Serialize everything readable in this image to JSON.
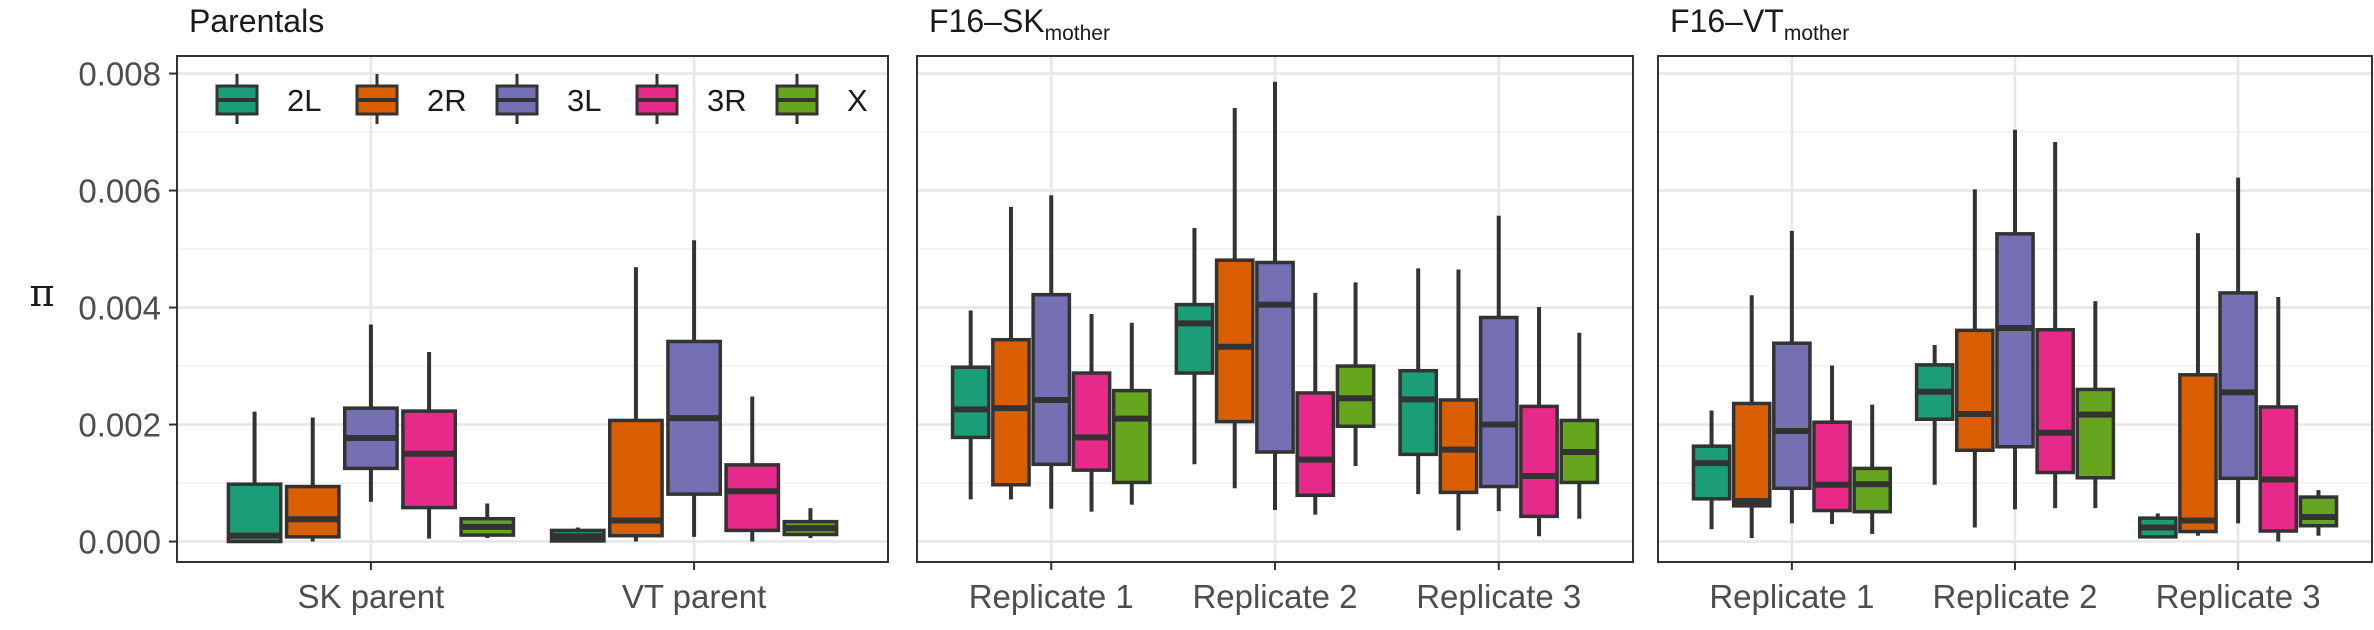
{
  "chart_data": {
    "type": "box",
    "ylabel": "π",
    "ylim": [
      -0.00035,
      0.0083
    ],
    "yticks": [
      0.0,
      0.002,
      0.004,
      0.006,
      0.008
    ],
    "ytick_labels": [
      "0.000",
      "0.002",
      "0.004",
      "0.006",
      "0.008"
    ],
    "grid": true,
    "legend": {
      "placement": "top-left",
      "entries": [
        {
          "label": "2L",
          "color": "#1b9e77"
        },
        {
          "label": "2R",
          "color": "#d95f02"
        },
        {
          "label": "3L",
          "color": "#7570b3"
        },
        {
          "label": "3R",
          "color": "#e7298a"
        },
        {
          "label": "X",
          "color": "#66a61e"
        }
      ]
    },
    "series_names": [
      "2L",
      "2R",
      "3L",
      "3R",
      "X"
    ],
    "colors": [
      "#1b9e77",
      "#d95f02",
      "#7570b3",
      "#e7298a",
      "#66a61e"
    ],
    "panels": [
      {
        "title": "Parentals",
        "title_sub": "",
        "categories": [
          "SK parent",
          "VT parent"
        ],
        "boxes": [
          [
            {
              "min": 0.0,
              "q1": 0.0,
              "median": 0.0001,
              "q3": 0.00098,
              "max": 0.00222
            },
            {
              "min": 0.0,
              "q1": 8e-05,
              "median": 0.00038,
              "q3": 0.00094,
              "max": 0.00212
            },
            {
              "min": 0.00068,
              "q1": 0.00125,
              "median": 0.00177,
              "q3": 0.00228,
              "max": 0.00371
            },
            {
              "min": 5e-05,
              "q1": 0.00058,
              "median": 0.0015,
              "q3": 0.00223,
              "max": 0.00324
            },
            {
              "min": 6e-05,
              "q1": 0.00011,
              "median": 0.00025,
              "q3": 0.00039,
              "max": 0.00065
            }
          ],
          [
            {
              "min": 0.0,
              "q1": 1e-05,
              "median": 9e-05,
              "q3": 0.00019,
              "max": 0.00024
            },
            {
              "min": 0.0,
              "q1": 0.0001,
              "median": 0.00036,
              "q3": 0.00207,
              "max": 0.00469
            },
            {
              "min": 8e-05,
              "q1": 0.00081,
              "median": 0.00211,
              "q3": 0.00342,
              "max": 0.00515
            },
            {
              "min": 0.0,
              "q1": 0.00019,
              "median": 0.00086,
              "q3": 0.00131,
              "max": 0.00248
            },
            {
              "min": 6e-05,
              "q1": 0.00012,
              "median": 0.00023,
              "q3": 0.00034,
              "max": 0.00057
            }
          ]
        ]
      },
      {
        "title": "F16–SK",
        "title_sub": "mother",
        "categories": [
          "Replicate 1",
          "Replicate 2",
          "Replicate 3"
        ],
        "boxes": [
          [
            {
              "min": 0.00072,
              "q1": 0.00178,
              "median": 0.00226,
              "q3": 0.00298,
              "max": 0.00395
            },
            {
              "min": 0.00072,
              "q1": 0.00097,
              "median": 0.00228,
              "q3": 0.00345,
              "max": 0.00572
            },
            {
              "min": 0.00056,
              "q1": 0.00132,
              "median": 0.00242,
              "q3": 0.00422,
              "max": 0.00592
            },
            {
              "min": 0.00051,
              "q1": 0.00122,
              "median": 0.00178,
              "q3": 0.00288,
              "max": 0.00389
            },
            {
              "min": 0.00063,
              "q1": 0.00101,
              "median": 0.0021,
              "q3": 0.00258,
              "max": 0.00374
            }
          ],
          [
            {
              "min": 0.00132,
              "q1": 0.00288,
              "median": 0.00373,
              "q3": 0.00405,
              "max": 0.00536
            },
            {
              "min": 0.00091,
              "q1": 0.00205,
              "median": 0.00333,
              "q3": 0.00481,
              "max": 0.00741
            },
            {
              "min": 0.00054,
              "q1": 0.00153,
              "median": 0.00405,
              "q3": 0.00477,
              "max": 0.00786
            },
            {
              "min": 0.00046,
              "q1": 0.00079,
              "median": 0.0014,
              "q3": 0.00254,
              "max": 0.00425
            },
            {
              "min": 0.00129,
              "q1": 0.00197,
              "median": 0.00245,
              "q3": 0.003,
              "max": 0.00443
            }
          ],
          [
            {
              "min": 0.00081,
              "q1": 0.00149,
              "median": 0.00243,
              "q3": 0.00292,
              "max": 0.00467
            },
            {
              "min": 0.00019,
              "q1": 0.00084,
              "median": 0.00157,
              "q3": 0.00242,
              "max": 0.00465
            },
            {
              "min": 0.00052,
              "q1": 0.00094,
              "median": 0.002,
              "q3": 0.00383,
              "max": 0.00557
            },
            {
              "min": 9e-05,
              "q1": 0.00043,
              "median": 0.00112,
              "q3": 0.00231,
              "max": 0.00401
            },
            {
              "min": 0.00039,
              "q1": 0.00101,
              "median": 0.00153,
              "q3": 0.00207,
              "max": 0.00357
            }
          ]
        ]
      },
      {
        "title": "F16–VT",
        "title_sub": "mother",
        "categories": [
          "Replicate 1",
          "Replicate 2",
          "Replicate 3"
        ],
        "boxes": [
          [
            {
              "min": 0.00021,
              "q1": 0.00073,
              "median": 0.00134,
              "q3": 0.00163,
              "max": 0.00224
            },
            {
              "min": 6e-05,
              "q1": 0.00061,
              "median": 0.00069,
              "q3": 0.00236,
              "max": 0.00421
            },
            {
              "min": 0.00031,
              "q1": 0.00091,
              "median": 0.00189,
              "q3": 0.00339,
              "max": 0.00531
            },
            {
              "min": 0.0003,
              "q1": 0.00053,
              "median": 0.00097,
              "q3": 0.00204,
              "max": 0.00301
            },
            {
              "min": 0.00013,
              "q1": 0.00051,
              "median": 0.00098,
              "q3": 0.00125,
              "max": 0.00234
            }
          ],
          [
            {
              "min": 0.00097,
              "q1": 0.00209,
              "median": 0.00256,
              "q3": 0.00302,
              "max": 0.00336
            },
            {
              "min": 0.00024,
              "q1": 0.00156,
              "median": 0.00218,
              "q3": 0.00361,
              "max": 0.00602
            },
            {
              "min": 0.00055,
              "q1": 0.00162,
              "median": 0.00365,
              "q3": 0.00526,
              "max": 0.00704
            },
            {
              "min": 0.00057,
              "q1": 0.00118,
              "median": 0.00186,
              "q3": 0.00362,
              "max": 0.00683
            },
            {
              "min": 0.00057,
              "q1": 0.00109,
              "median": 0.00217,
              "q3": 0.0026,
              "max": 0.00411
            }
          ],
          [
            {
              "min": 5e-05,
              "q1": 8e-05,
              "median": 0.00024,
              "q3": 0.0004,
              "max": 0.00048
            },
            {
              "min": 0.0001,
              "q1": 0.00017,
              "median": 0.00036,
              "q3": 0.00285,
              "max": 0.00527
            },
            {
              "min": 0.00031,
              "q1": 0.00108,
              "median": 0.00255,
              "q3": 0.00425,
              "max": 0.00622
            },
            {
              "min": 0.0,
              "q1": 0.00018,
              "median": 0.00106,
              "q3": 0.0023,
              "max": 0.00418
            },
            {
              "min": 0.0001,
              "q1": 0.00027,
              "median": 0.00042,
              "q3": 0.00076,
              "max": 0.00088
            }
          ]
        ]
      }
    ]
  }
}
